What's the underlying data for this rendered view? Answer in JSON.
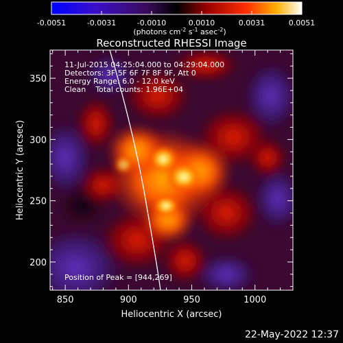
{
  "colorbar": {
    "tick_labels": [
      "-0.0051",
      "-0.0031",
      "-0.0010",
      "0.0010",
      "0.0031",
      "0.0051"
    ],
    "units_parts": [
      "(photons cm",
      "-2",
      " s",
      "-1",
      " asec",
      "-2",
      ")"
    ]
  },
  "image": {
    "title": "Reconstructed RHESSI Image",
    "annotations": [
      "11-Jul-2015 04:25:04.000 to 04:29:04.000",
      "Detectors: 3F 5F 6F 7F 8F 9F, Att 0",
      "Energy Range: 6.0 - 12.0 keV",
      "Clean    Total counts: 1.96E+04"
    ],
    "peak_label": "Position of Peak = [944,269]",
    "peak": [
      944,
      269
    ]
  },
  "axes": {
    "xlabel": "Heliocentric X (arcsec)",
    "ylabel": "Heliocentric Y (arcsec)",
    "xrange": [
      838,
      1030
    ],
    "yrange": [
      177,
      373
    ],
    "xticks": [
      850,
      900,
      950,
      1000
    ],
    "yticks": [
      200,
      250,
      300,
      350
    ]
  },
  "footer": {
    "timestamp": "22-May-2022 12:37"
  }
}
